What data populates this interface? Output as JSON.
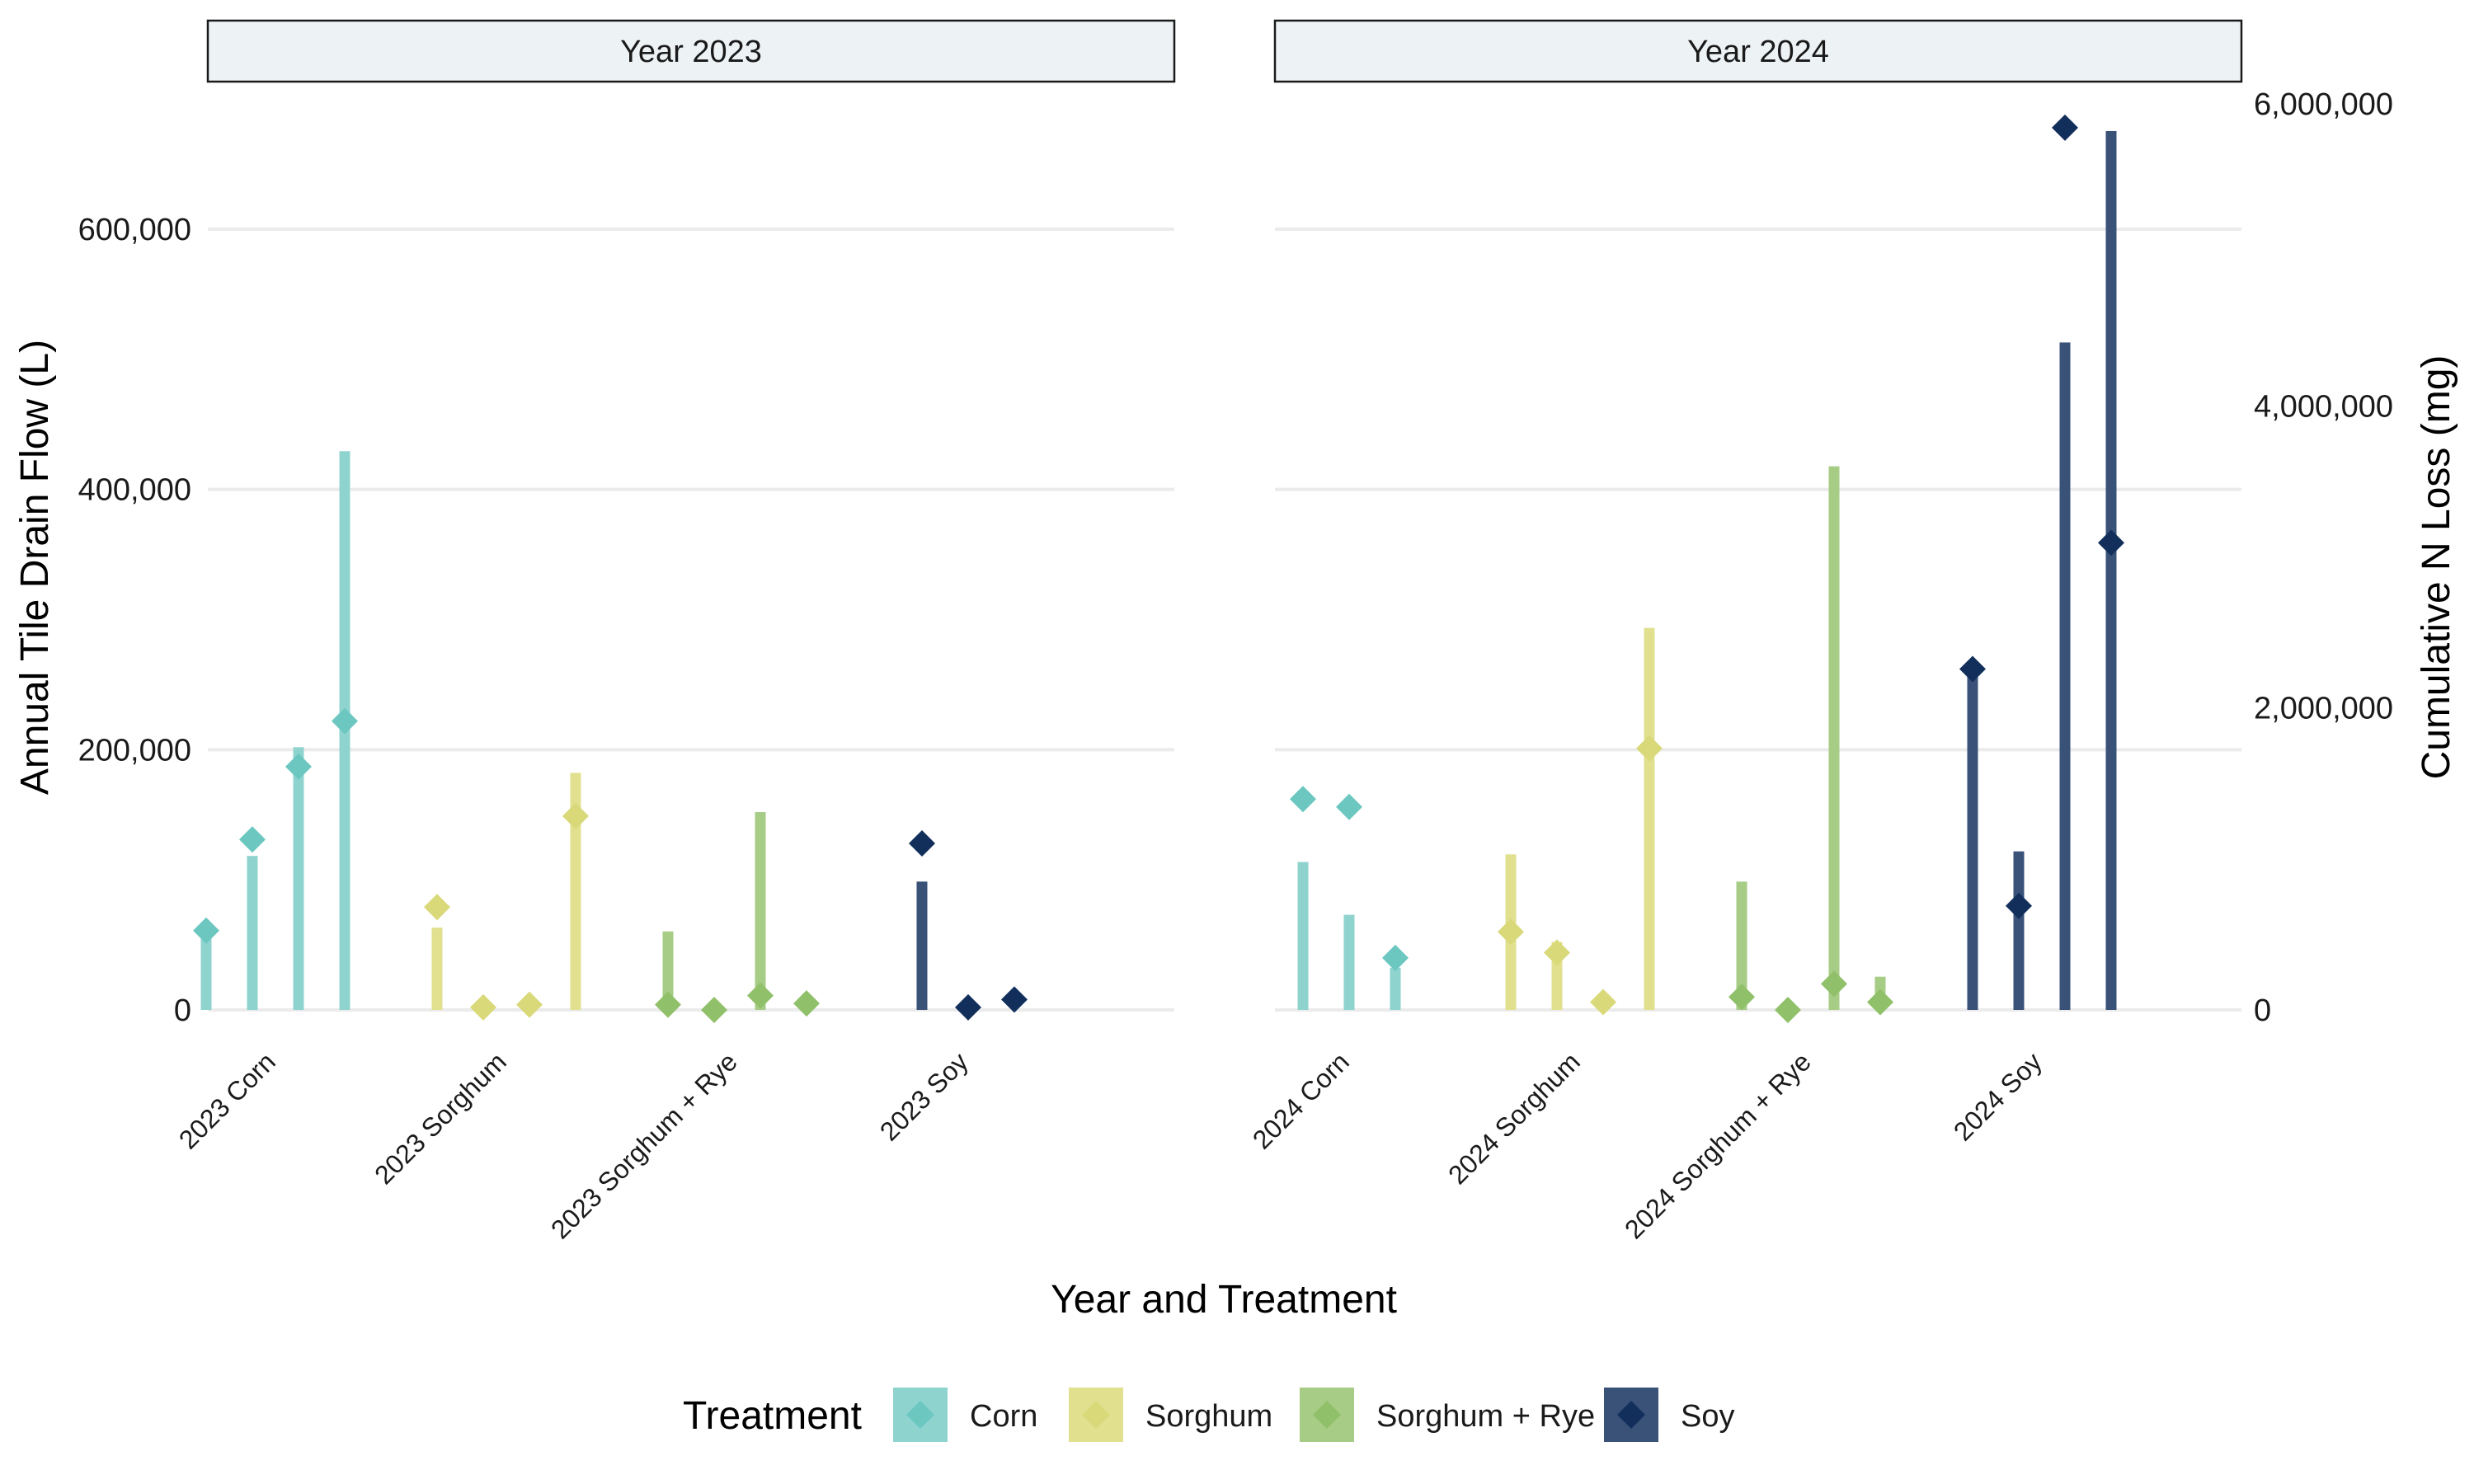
{
  "chart_data": {
    "type": "bar",
    "subtype": "dual-axis faceted bar (vertical segments) with diamond markers",
    "xlabel": "Year and Treatment",
    "ylabel_left": "Annual Tile Drain Flow (L)",
    "ylabel_right": "Cumulative N Loss (mg)",
    "ylim_left": [
      0,
      700000
    ],
    "yticks_left": [
      "0",
      "200,000",
      "400,000",
      "600,000"
    ],
    "yticks_left_values": [
      0,
      200000,
      400000,
      600000
    ],
    "ylim_right": [
      0,
      6000000
    ],
    "yticks_right": [
      "0",
      "2,000,000",
      "4,000,000",
      "6,000,000"
    ],
    "yticks_right_values": [
      0,
      2000000,
      4000000,
      6000000
    ],
    "bars_axis": "right",
    "markers_axis": "left",
    "grid": true,
    "legend": {
      "title": "Treatment",
      "position": "bottom",
      "entries": [
        "Corn",
        "Sorghum",
        "Sorghum + Rye",
        "Soy"
      ]
    },
    "colors": {
      "Corn": "#6cc7c1",
      "Sorghum": "#d9d97a",
      "Sorghum + Rye": "#90c06a",
      "Soy": "#122f5c"
    },
    "bar_colors": {
      "Corn": "#8fd3cf",
      "Sorghum": "#e0e08f",
      "Sorghum + Rye": "#a6cc85",
      "Soy": "#3a5278"
    },
    "facets": [
      {
        "title": "Year 2023",
        "groups": [
          {
            "label": "2023 Corn",
            "treatment": "Corn",
            "bars": [
              480000,
              1020000,
              1740000,
              3700000
            ],
            "markers": [
              61000,
              131000,
              187000,
              222000
            ]
          },
          {
            "label": "2023 Sorghum",
            "treatment": "Sorghum",
            "bars": [
              545000,
              null,
              null,
              1570000
            ],
            "markers": [
              79000,
              2000,
              4000,
              149000
            ]
          },
          {
            "label": "2023 Sorghum + Rye",
            "treatment": "Sorghum + Rye",
            "bars": [
              520000,
              null,
              1310000,
              null
            ],
            "markers": [
              4000,
              0,
              11000,
              5000
            ]
          },
          {
            "label": "2023 Soy",
            "treatment": "Soy",
            "bars": [
              850000,
              null,
              null
            ],
            "markers": [
              128000,
              2000,
              8000
            ]
          }
        ]
      },
      {
        "title": "Year 2024",
        "groups": [
          {
            "label": "2024 Corn",
            "treatment": "Corn",
            "bars": [
              980000,
              630000,
              280000
            ],
            "markers": [
              162000,
              156000,
              40000
            ]
          },
          {
            "label": "2024 Sorghum",
            "treatment": "Sorghum",
            "bars": [
              1030000,
              450000,
              null,
              2530000
            ],
            "markers": [
              60000,
              44000,
              6000,
              201000
            ]
          },
          {
            "label": "2024 Sorghum + Rye",
            "treatment": "Sorghum + Rye",
            "bars": [
              850000,
              null,
              3600000,
              220000
            ],
            "markers": [
              10000,
              0,
              20000,
              6000
            ]
          },
          {
            "label": "2024 Soy",
            "treatment": "Soy",
            "bars": [
              2250000,
              1050000,
              4420000,
              5820000
            ],
            "markers": [
              262000,
              80000,
              678000,
              359000
            ]
          }
        ]
      }
    ]
  }
}
